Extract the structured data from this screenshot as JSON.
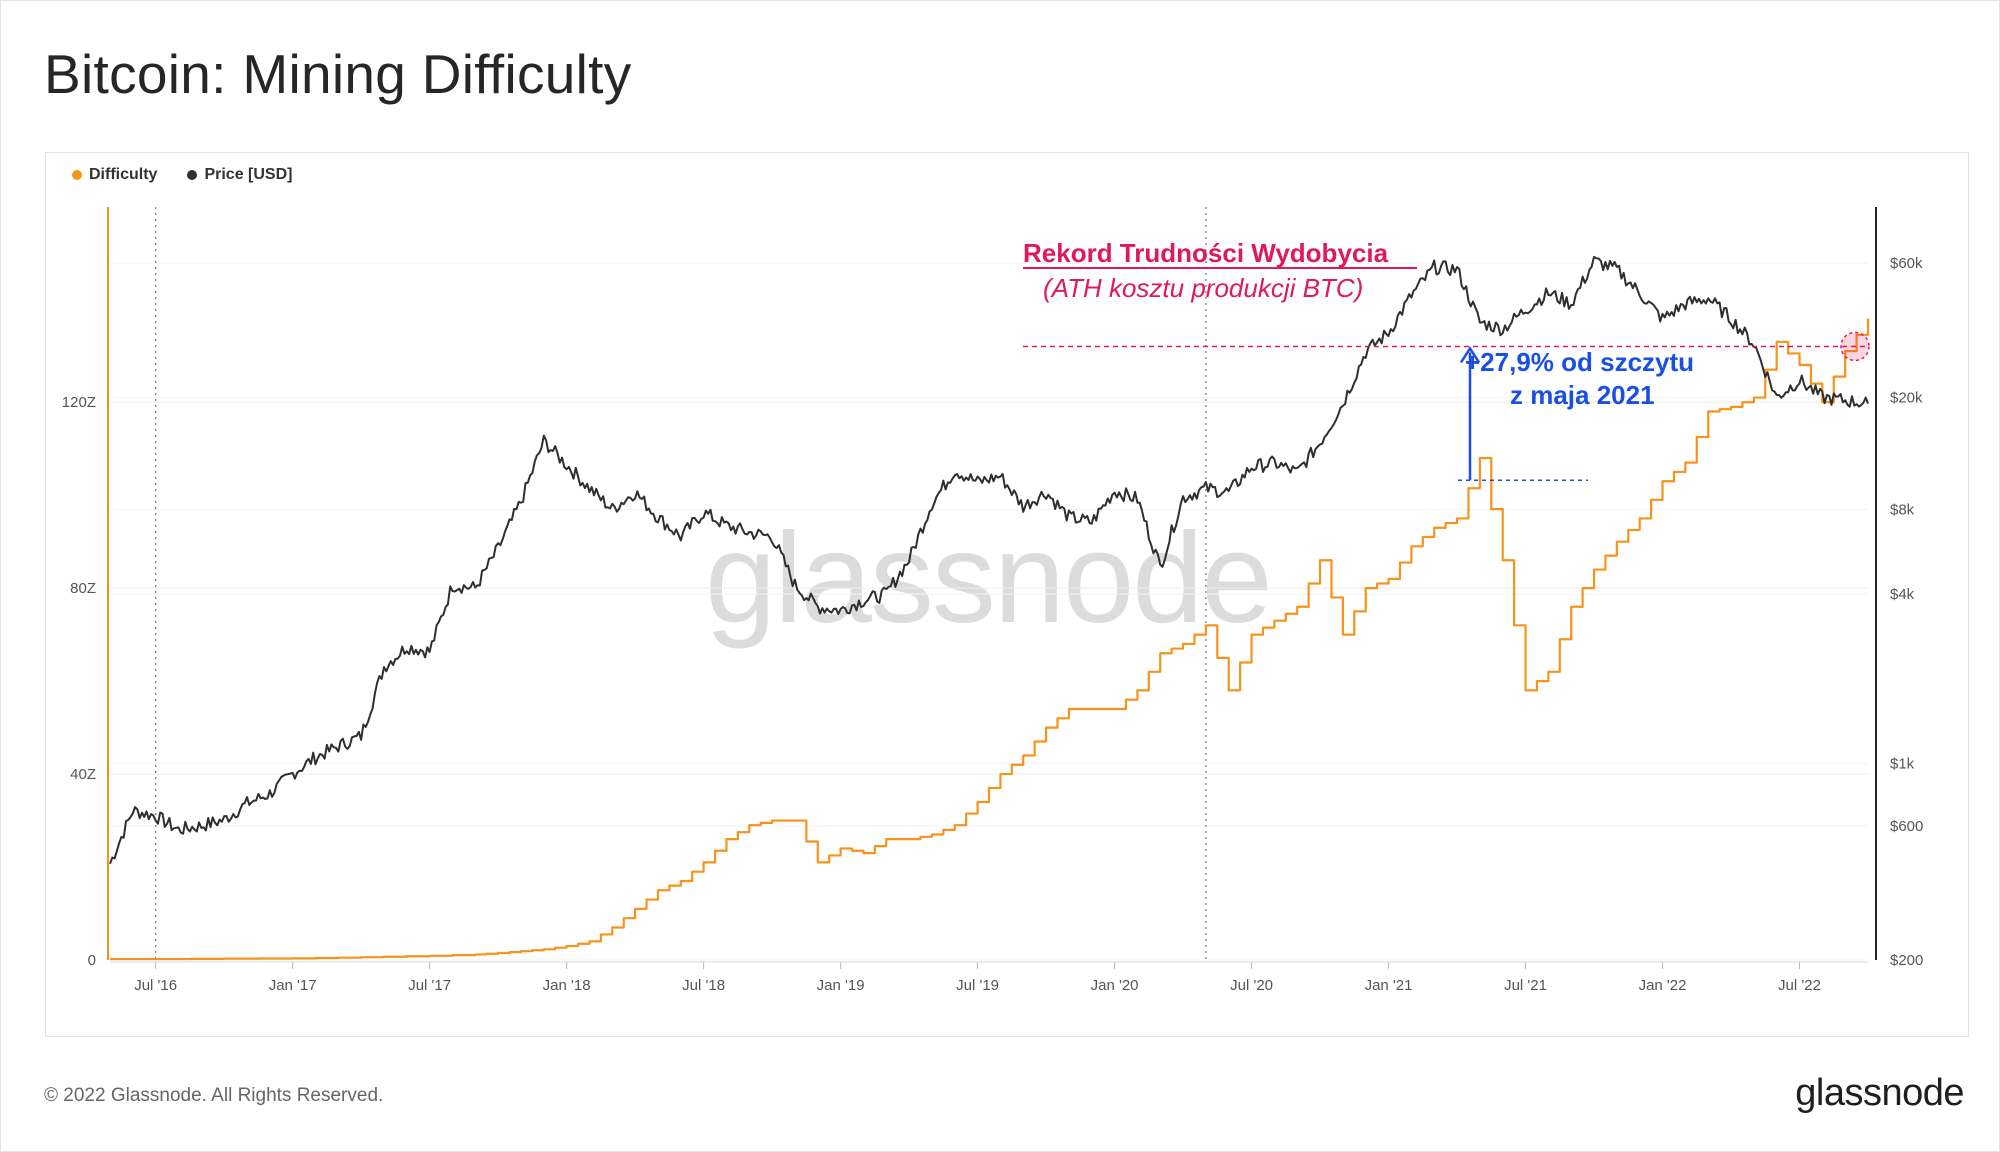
{
  "page": {
    "title": "Bitcoin: Mining Difficulty",
    "footer_copyright": "© 2022 Glassnode. All Rights Reserved.",
    "footer_logo": "glassnode",
    "watermark": "glassnode"
  },
  "legend": [
    {
      "label": "Difficulty",
      "color": "#f7931a"
    },
    {
      "label": "Price [USD]",
      "color": "#2f2f2f"
    }
  ],
  "annotation": {
    "title": "Rekord Trudności Wydobycia",
    "subtitle": "(ATH kosztu produkcji BTC)",
    "pct_line1": "+27,9% od szczytu",
    "pct_line2": "z maja 2021",
    "colors": {
      "record": "#e0195a",
      "change": "#1a4fe6"
    }
  },
  "chart_data": {
    "type": "line",
    "x_range": [
      "2016-05",
      "2022-10"
    ],
    "x_ticks": [
      "Jul '16",
      "Jan '17",
      "Jul '17",
      "Jan '18",
      "Jul '18",
      "Jan '19",
      "Jul '19",
      "Jan '20",
      "Jul '20",
      "Jan '21",
      "Jul '21",
      "Jan '22",
      "Jul '22"
    ],
    "x_tick_dates": [
      "2016-07",
      "2017-01",
      "2017-07",
      "2018-01",
      "2018-07",
      "2019-01",
      "2019-07",
      "2020-01",
      "2020-07",
      "2021-01",
      "2021-07",
      "2022-01",
      "2022-07"
    ],
    "left_axis": {
      "ticks": [
        "0",
        "40Z",
        "80Z",
        "120Z"
      ],
      "values": [
        0,
        40,
        80,
        120
      ],
      "unit": "Z",
      "range": [
        0,
        162
      ]
    },
    "right_axis": {
      "scale": "log",
      "ticks": [
        "$200",
        "$600",
        "$1k",
        "$4k",
        "$8k",
        "$20k",
        "$60k"
      ],
      "values": [
        200,
        600,
        1000,
        4000,
        8000,
        20000,
        60000
      ],
      "range": [
        200,
        95000
      ]
    },
    "halving_markers": [
      "2016-07",
      "2020-05"
    ],
    "series": [
      {
        "name": "Difficulty",
        "axis": "left",
        "color": "#f7931a",
        "points": [
          [
            "2016-05",
            0.2
          ],
          [
            "2016-07",
            0.2
          ],
          [
            "2016-10",
            0.3
          ],
          [
            "2017-01",
            0.35
          ],
          [
            "2017-03",
            0.5
          ],
          [
            "2017-05",
            0.7
          ],
          [
            "2017-07",
            0.9
          ],
          [
            "2017-09",
            1.2
          ],
          [
            "2017-10",
            1.5
          ],
          [
            "2017-11",
            1.9
          ],
          [
            "2017-12",
            2.3
          ],
          [
            "2018-01",
            3
          ],
          [
            "2018-02",
            4
          ],
          [
            "2018-03",
            7
          ],
          [
            "2018-04",
            11
          ],
          [
            "2018-05",
            15
          ],
          [
            "2018-06",
            17
          ],
          [
            "2018-07",
            21
          ],
          [
            "2018-08",
            26
          ],
          [
            "2018-09",
            29
          ],
          [
            "2018-10",
            30
          ],
          [
            "2018-11",
            30
          ],
          [
            "2018-12",
            21
          ],
          [
            "2019-01",
            24
          ],
          [
            "2019-02",
            23
          ],
          [
            "2019-03",
            26
          ],
          [
            "2019-04",
            26
          ],
          [
            "2019-05",
            27
          ],
          [
            "2019-06",
            29
          ],
          [
            "2019-07",
            34
          ],
          [
            "2019-08",
            40
          ],
          [
            "2019-09",
            44
          ],
          [
            "2019-10",
            50
          ],
          [
            "2019-11",
            54
          ],
          [
            "2019-12",
            54
          ],
          [
            "2020-01",
            54
          ],
          [
            "2020-02",
            58
          ],
          [
            "2020-03",
            66
          ],
          [
            "2020-04",
            68
          ],
          [
            "2020-05",
            72
          ],
          [
            "2020-06",
            58
          ],
          [
            "2020-07",
            70
          ],
          [
            "2020-08",
            73
          ],
          [
            "2020-09",
            76
          ],
          [
            "2020-10",
            86
          ],
          [
            "2020-11",
            70
          ],
          [
            "2020-12",
            80
          ],
          [
            "2021-01",
            82
          ],
          [
            "2021-02",
            89
          ],
          [
            "2021-03",
            93
          ],
          [
            "2021-04",
            95
          ],
          [
            "2021-05",
            108
          ],
          [
            "2021-06",
            86
          ],
          [
            "2021-07",
            58
          ],
          [
            "2021-08",
            62
          ],
          [
            "2021-09",
            76
          ],
          [
            "2021-10",
            84
          ],
          [
            "2021-11",
            90
          ],
          [
            "2021-12",
            95
          ],
          [
            "2022-01",
            103
          ],
          [
            "2022-02",
            107
          ],
          [
            "2022-03",
            118
          ],
          [
            "2022-04",
            119
          ],
          [
            "2022-05",
            121
          ],
          [
            "2022-06",
            133
          ],
          [
            "2022-07",
            128
          ],
          [
            "2022-08",
            120
          ],
          [
            "2022-09",
            131
          ],
          [
            "2022-10",
            138
          ]
        ]
      },
      {
        "name": "Price [USD]",
        "axis": "right",
        "color": "#2f2f2f",
        "points": [
          [
            "2016-05",
            440
          ],
          [
            "2016-06",
            680
          ],
          [
            "2016-07",
            650
          ],
          [
            "2016-08",
            580
          ],
          [
            "2016-09",
            600
          ],
          [
            "2016-10",
            630
          ],
          [
            "2016-11",
            720
          ],
          [
            "2016-12",
            780
          ],
          [
            "2017-01",
            920
          ],
          [
            "2017-02",
            1050
          ],
          [
            "2017-03",
            1150
          ],
          [
            "2017-04",
            1250
          ],
          [
            "2017-05",
            2200
          ],
          [
            "2017-06",
            2600
          ],
          [
            "2017-07",
            2500
          ],
          [
            "2017-08",
            4300
          ],
          [
            "2017-09",
            4200
          ],
          [
            "2017-10",
            5800
          ],
          [
            "2017-11",
            8500
          ],
          [
            "2017-12",
            14000
          ],
          [
            "2018-01",
            11500
          ],
          [
            "2018-02",
            9500
          ],
          [
            "2018-03",
            8000
          ],
          [
            "2018-04",
            9200
          ],
          [
            "2018-05",
            7500
          ],
          [
            "2018-06",
            6400
          ],
          [
            "2018-07",
            7800
          ],
          [
            "2018-08",
            7000
          ],
          [
            "2018-09",
            6600
          ],
          [
            "2018-10",
            6400
          ],
          [
            "2018-11",
            4300
          ],
          [
            "2018-12",
            3600
          ],
          [
            "2019-01",
            3500
          ],
          [
            "2019-02",
            3800
          ],
          [
            "2019-03",
            4000
          ],
          [
            "2019-04",
            5300
          ],
          [
            "2019-05",
            8400
          ],
          [
            "2019-06",
            11000
          ],
          [
            "2019-07",
            10000
          ],
          [
            "2019-08",
            10500
          ],
          [
            "2019-09",
            8200
          ],
          [
            "2019-10",
            9200
          ],
          [
            "2019-11",
            7500
          ],
          [
            "2019-12",
            7200
          ],
          [
            "2020-01",
            9300
          ],
          [
            "2020-02",
            8700
          ],
          [
            "2020-03",
            5000
          ],
          [
            "2020-04",
            8800
          ],
          [
            "2020-05",
            9500
          ],
          [
            "2020-06",
            9200
          ],
          [
            "2020-07",
            11300
          ],
          [
            "2020-08",
            11700
          ],
          [
            "2020-09",
            10800
          ],
          [
            "2020-10",
            13800
          ],
          [
            "2020-11",
            19000
          ],
          [
            "2020-12",
            29000
          ],
          [
            "2021-01",
            34000
          ],
          [
            "2021-02",
            46000
          ],
          [
            "2021-03",
            58000
          ],
          [
            "2021-04",
            57000
          ],
          [
            "2021-05",
            37000
          ],
          [
            "2021-06",
            35000
          ],
          [
            "2021-07",
            41000
          ],
          [
            "2021-08",
            47000
          ],
          [
            "2021-09",
            43000
          ],
          [
            "2021-10",
            61000
          ],
          [
            "2021-11",
            57000
          ],
          [
            "2021-12",
            47000
          ],
          [
            "2022-01",
            38000
          ],
          [
            "2022-02",
            43000
          ],
          [
            "2022-03",
            45000
          ],
          [
            "2022-04",
            38000
          ],
          [
            "2022-05",
            31000
          ],
          [
            "2022-06",
            20000
          ],
          [
            "2022-07",
            23000
          ],
          [
            "2022-08",
            20000
          ],
          [
            "2022-09",
            19500
          ],
          [
            "2022-10",
            19000
          ]
        ]
      }
    ],
    "annotation_levels": {
      "record_level": 132,
      "may_2021_level": 103.2,
      "change_pct": "+27.9%"
    }
  }
}
